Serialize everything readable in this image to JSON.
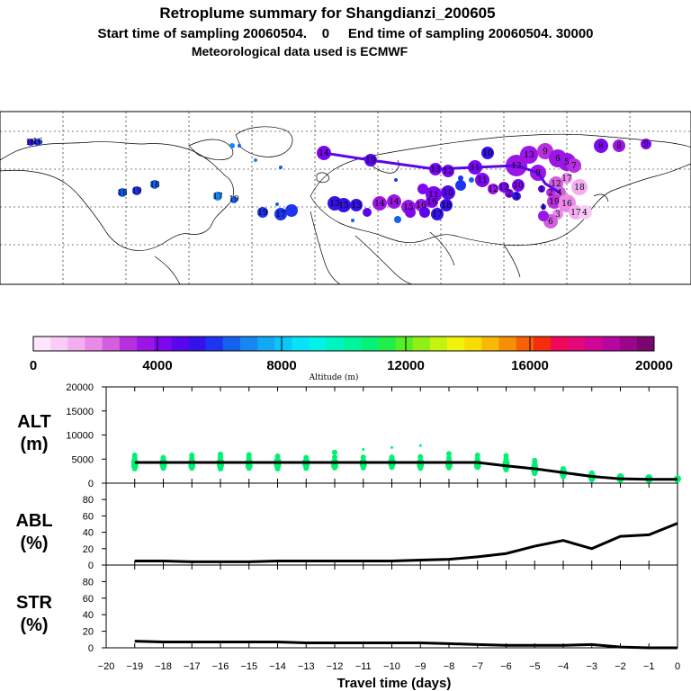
{
  "header": {
    "title": "Retroplume summary for Shangdianzi_200605",
    "line2": "Start time of sampling 20060504.    0     End time of sampling 20060504. 30000",
    "line3": "Meteorological data used is ECMWF"
  },
  "colorbar": {
    "label": "Altitude (m)",
    "ticks": [
      "0",
      "4000",
      "8000",
      "12000",
      "16000",
      "20000"
    ],
    "colors": [
      "#fde6fb",
      "#f9ccf7",
      "#f2aef0",
      "#e98ae9",
      "#d35fe0",
      "#b82fdf",
      "#9b16e6",
      "#7d07ef",
      "#5a06ec",
      "#3612ea",
      "#1d35f0",
      "#1660f0",
      "#1686f2",
      "#12a8f5",
      "#0cc6f7",
      "#06e2f8",
      "#00f3e6",
      "#00f4c0",
      "#00f49a",
      "#06f07a",
      "#20ee4a",
      "#56ee26",
      "#90f016",
      "#c4f310",
      "#f0f40c",
      "#f7dc08",
      "#f7b806",
      "#f88e06",
      "#f76004",
      "#f42e0c",
      "#f0085a",
      "#e4087a",
      "#d00696",
      "#b806a0",
      "#9a068a",
      "#7a0670"
    ]
  },
  "map": {
    "number_labels": [
      "16",
      "16",
      "18",
      "19",
      "18",
      "17",
      "19",
      "19",
      "17",
      "14",
      "13",
      "15",
      "13",
      "14",
      "14",
      "15",
      "16",
      "16",
      "17",
      "18",
      "19",
      "13",
      "12",
      "11",
      "10",
      "11",
      "12",
      "12",
      "13",
      "13",
      "10",
      "9",
      "9",
      "6",
      "5",
      "7",
      "8",
      "8",
      "9",
      "10",
      "11",
      "12",
      "17",
      "18",
      "19",
      "16",
      "17",
      "6",
      "4",
      "4",
      "3",
      "1",
      "2",
      "3",
      "1",
      "2"
    ]
  },
  "colors": {
    "points_alt": "#00f070",
    "line": "#000000",
    "track": "#5a06ec"
  },
  "chart_data": [
    {
      "type": "line",
      "panel": "ALT",
      "ylabel": "ALT\n(m)",
      "ylabel_lines": [
        "ALT",
        "(m)"
      ],
      "ylim": [
        0,
        20000
      ],
      "yticks": [
        "0",
        "5000",
        "10000",
        "15000",
        "20000"
      ],
      "x": [
        -19,
        -18,
        -17,
        -16,
        -15,
        -14,
        -13,
        -12,
        -11,
        -10,
        -9,
        -8,
        -7,
        -6,
        -5,
        -4,
        -3,
        -2,
        -1,
        0
      ],
      "values": [
        4300,
        4300,
        4300,
        4300,
        4300,
        4300,
        4300,
        4300,
        4300,
        4300,
        4300,
        4300,
        4300,
        3600,
        3000,
        2200,
        1400,
        900,
        800,
        800
      ],
      "scatter": [
        {
          "x": -19,
          "y": [
            3000,
            3600,
            4400,
            5200,
            5800
          ]
        },
        {
          "x": -18,
          "y": [
            3100,
            3700,
            4500,
            5300
          ]
        },
        {
          "x": -17,
          "y": [
            3100,
            3600,
            4400,
            5200,
            5800
          ]
        },
        {
          "x": -16,
          "y": [
            3000,
            3700,
            4500,
            5400,
            6000
          ]
        },
        {
          "x": -15,
          "y": [
            3100,
            3600,
            4400,
            5300,
            5900
          ]
        },
        {
          "x": -14,
          "y": [
            3000,
            3700,
            4600,
            5600
          ]
        },
        {
          "x": -13,
          "y": [
            3100,
            3800,
            4500,
            5300
          ]
        },
        {
          "x": -12,
          "y": [
            3200,
            3600,
            4400,
            5400,
            6400
          ]
        },
        {
          "x": -11,
          "y": [
            3200,
            3800,
            4400,
            5400,
            7000
          ]
        },
        {
          "x": -10,
          "y": [
            3300,
            3900,
            4600,
            5400,
            7400
          ]
        },
        {
          "x": -9,
          "y": [
            3100,
            3700,
            4400,
            5500,
            7800
          ]
        },
        {
          "x": -8,
          "y": [
            3200,
            3700,
            4300,
            5200,
            6100
          ]
        },
        {
          "x": -7,
          "y": [
            3300,
            3600,
            4300,
            5000,
            5800
          ]
        },
        {
          "x": -6,
          "y": [
            2800,
            3300,
            4200,
            5000,
            5700
          ]
        },
        {
          "x": -5,
          "y": [
            2000,
            2600,
            3400,
            4100,
            4700
          ]
        },
        {
          "x": -4,
          "y": [
            1400,
            1900,
            2400,
            3000
          ]
        },
        {
          "x": -3,
          "y": [
            700,
            1100,
            1600,
            2100
          ]
        },
        {
          "x": -2,
          "y": [
            600,
            900,
            1300
          ]
        },
        {
          "x": -1,
          "y": [
            600,
            800,
            1100
          ]
        },
        {
          "x": 0,
          "y": [
            600,
            900
          ]
        }
      ]
    },
    {
      "type": "line",
      "panel": "ABL",
      "ylabel": "ABL\n(%)",
      "ylabel_lines": [
        "ABL",
        "(%)"
      ],
      "ylim": [
        0,
        100
      ],
      "yticks": [
        "0",
        "20",
        "40",
        "60",
        "80"
      ],
      "x": [
        -19,
        -18,
        -17,
        -16,
        -15,
        -14,
        -13,
        -12,
        -11,
        -10,
        -9,
        -8,
        -7,
        -6,
        -5,
        -4,
        -3,
        -2,
        -1,
        0
      ],
      "values": [
        5,
        5,
        4,
        4,
        4,
        5,
        5,
        5,
        5,
        5,
        6,
        7,
        10,
        14,
        23,
        30,
        20,
        35,
        37,
        51
      ]
    },
    {
      "type": "line",
      "panel": "STR",
      "ylabel": "STR\n(%)",
      "ylabel_lines": [
        "STR",
        "(%)"
      ],
      "ylim": [
        0,
        100
      ],
      "yticks": [
        "0",
        "20",
        "40",
        "60",
        "80"
      ],
      "xlabel": "Travel time (days)",
      "xticks": [
        "-20",
        "-19",
        "-18",
        "-17",
        "-16",
        "-15",
        "-14",
        "-13",
        "-12",
        "-11",
        "-10",
        "-9",
        "-8",
        "-7",
        "-6",
        "-5",
        "-4",
        "-3",
        "-2",
        "-1",
        "0"
      ],
      "x": [
        -19,
        -18,
        -17,
        -16,
        -15,
        -14,
        -13,
        -12,
        -11,
        -10,
        -9,
        -8,
        -7,
        -6,
        -5,
        -4,
        -3,
        -2,
        -1,
        0
      ],
      "values": [
        8,
        7,
        7,
        7,
        7,
        7,
        6,
        6,
        6,
        6,
        6,
        5,
        4,
        3,
        3,
        3,
        4,
        1,
        0,
        0
      ]
    }
  ]
}
